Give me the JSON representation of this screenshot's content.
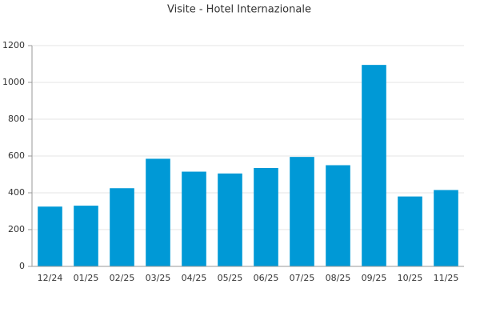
{
  "chart_data": {
    "type": "bar",
    "title": "Visite - Hotel Internazionale",
    "categories": [
      "12/24",
      "01/25",
      "02/25",
      "03/25",
      "04/25",
      "05/25",
      "06/25",
      "07/25",
      "08/25",
      "09/25",
      "10/25",
      "11/25"
    ],
    "values": [
      325,
      330,
      425,
      585,
      515,
      505,
      535,
      595,
      550,
      1095,
      380,
      415
    ],
    "color": "#0099d6",
    "ylim": [
      0,
      1200
    ],
    "yticks": [
      0,
      200,
      400,
      600,
      800,
      1000,
      1200
    ],
    "grid": true
  }
}
